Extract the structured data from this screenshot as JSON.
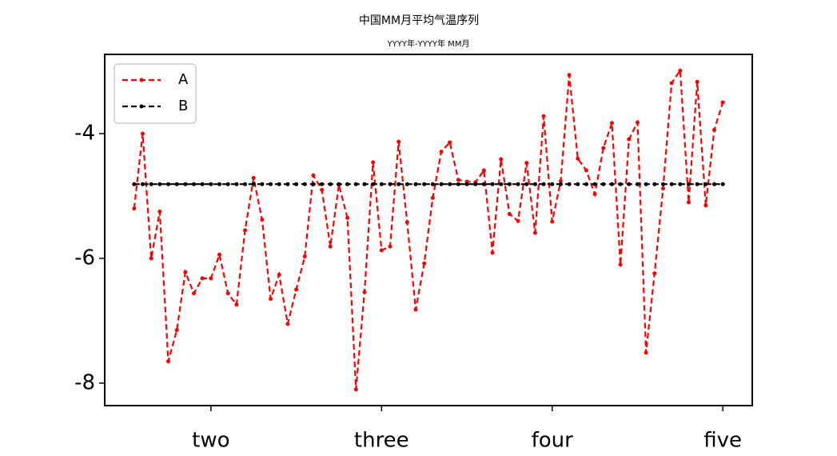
{
  "chart_data": {
    "type": "line",
    "title": "中国MM月平均气温序列",
    "subtitle": "YYYY年-YYYY年 MM月",
    "x": [
      0,
      1,
      2,
      3,
      4,
      5,
      6,
      7,
      8,
      9,
      10,
      11,
      12,
      13,
      14,
      15,
      16,
      17,
      18,
      19,
      20,
      21,
      22,
      23,
      24,
      25,
      26,
      27,
      28,
      29,
      30,
      31,
      32,
      33,
      34,
      35,
      36,
      37,
      38,
      39,
      40,
      41,
      42,
      43,
      44,
      45,
      46,
      47,
      48,
      49,
      50,
      51,
      52,
      53,
      54,
      55,
      56,
      57,
      58,
      59,
      60,
      61,
      62,
      63,
      64,
      65,
      66,
      67,
      68,
      69
    ],
    "series": [
      {
        "name": "A",
        "color": "#ff0000",
        "values": [
          -5.2,
          -4.0,
          -6.0,
          -5.25,
          -7.65,
          -7.15,
          -6.22,
          -6.56,
          -6.32,
          -6.32,
          -5.94,
          -6.56,
          -6.74,
          -5.55,
          -4.71,
          -5.38,
          -6.65,
          -6.26,
          -7.05,
          -6.5,
          -5.97,
          -4.67,
          -4.9,
          -5.81,
          -4.82,
          -5.35,
          -8.1,
          -6.54,
          -4.46,
          -5.87,
          -5.81,
          -4.13,
          -5.42,
          -6.82,
          -6.08,
          -5.03,
          -4.29,
          -4.14,
          -4.74,
          -4.77,
          -4.78,
          -4.59,
          -5.91,
          -4.41,
          -5.29,
          -5.4,
          -4.47,
          -5.59,
          -3.72,
          -5.41,
          -4.76,
          -3.06,
          -4.4,
          -4.59,
          -4.97,
          -4.23,
          -3.83,
          -6.1,
          -4.09,
          -3.82,
          -7.51,
          -6.24,
          -4.88,
          -3.19,
          -2.99,
          -5.1,
          -3.17,
          -5.15,
          -3.94,
          -3.5
        ]
      },
      {
        "name": "B",
        "color": "#000000",
        "values": [
          -4.81,
          -4.81,
          -4.81,
          -4.81,
          -4.81,
          -4.81,
          -4.81,
          -4.81,
          -4.81,
          -4.81,
          -4.81,
          -4.81,
          -4.81,
          -4.81,
          -4.81,
          -4.81,
          -4.81,
          -4.81,
          -4.81,
          -4.81,
          -4.81,
          -4.81,
          -4.81,
          -4.81,
          -4.81,
          -4.81,
          -4.81,
          -4.81,
          -4.81,
          -4.81,
          -4.81,
          -4.81,
          -4.81,
          -4.81,
          -4.81,
          -4.81,
          -4.81,
          -4.81,
          -4.81,
          -4.81,
          -4.81,
          -4.81,
          -4.81,
          -4.81,
          -4.81,
          -4.81,
          -4.81,
          -4.81,
          -4.81,
          -4.81,
          -4.81,
          -4.81,
          -4.81,
          -4.81,
          -4.81,
          -4.81,
          -4.81,
          -4.81,
          -4.81,
          -4.81,
          -4.81,
          -4.81,
          -4.81,
          -4.81,
          -4.81,
          -4.81,
          -4.81,
          -4.81,
          -4.81,
          -4.81
        ]
      }
    ],
    "xlim": [
      -3.45,
      72.45
    ],
    "xticks": [
      {
        "value": 9,
        "label": "two"
      },
      {
        "value": 29,
        "label": "three"
      },
      {
        "value": 49,
        "label": "four"
      },
      {
        "value": 69,
        "label": "five"
      }
    ],
    "ylim": [
      -8.36,
      -2.73
    ],
    "yticks": [
      -8,
      -6,
      -4
    ],
    "legend": "upper left"
  }
}
